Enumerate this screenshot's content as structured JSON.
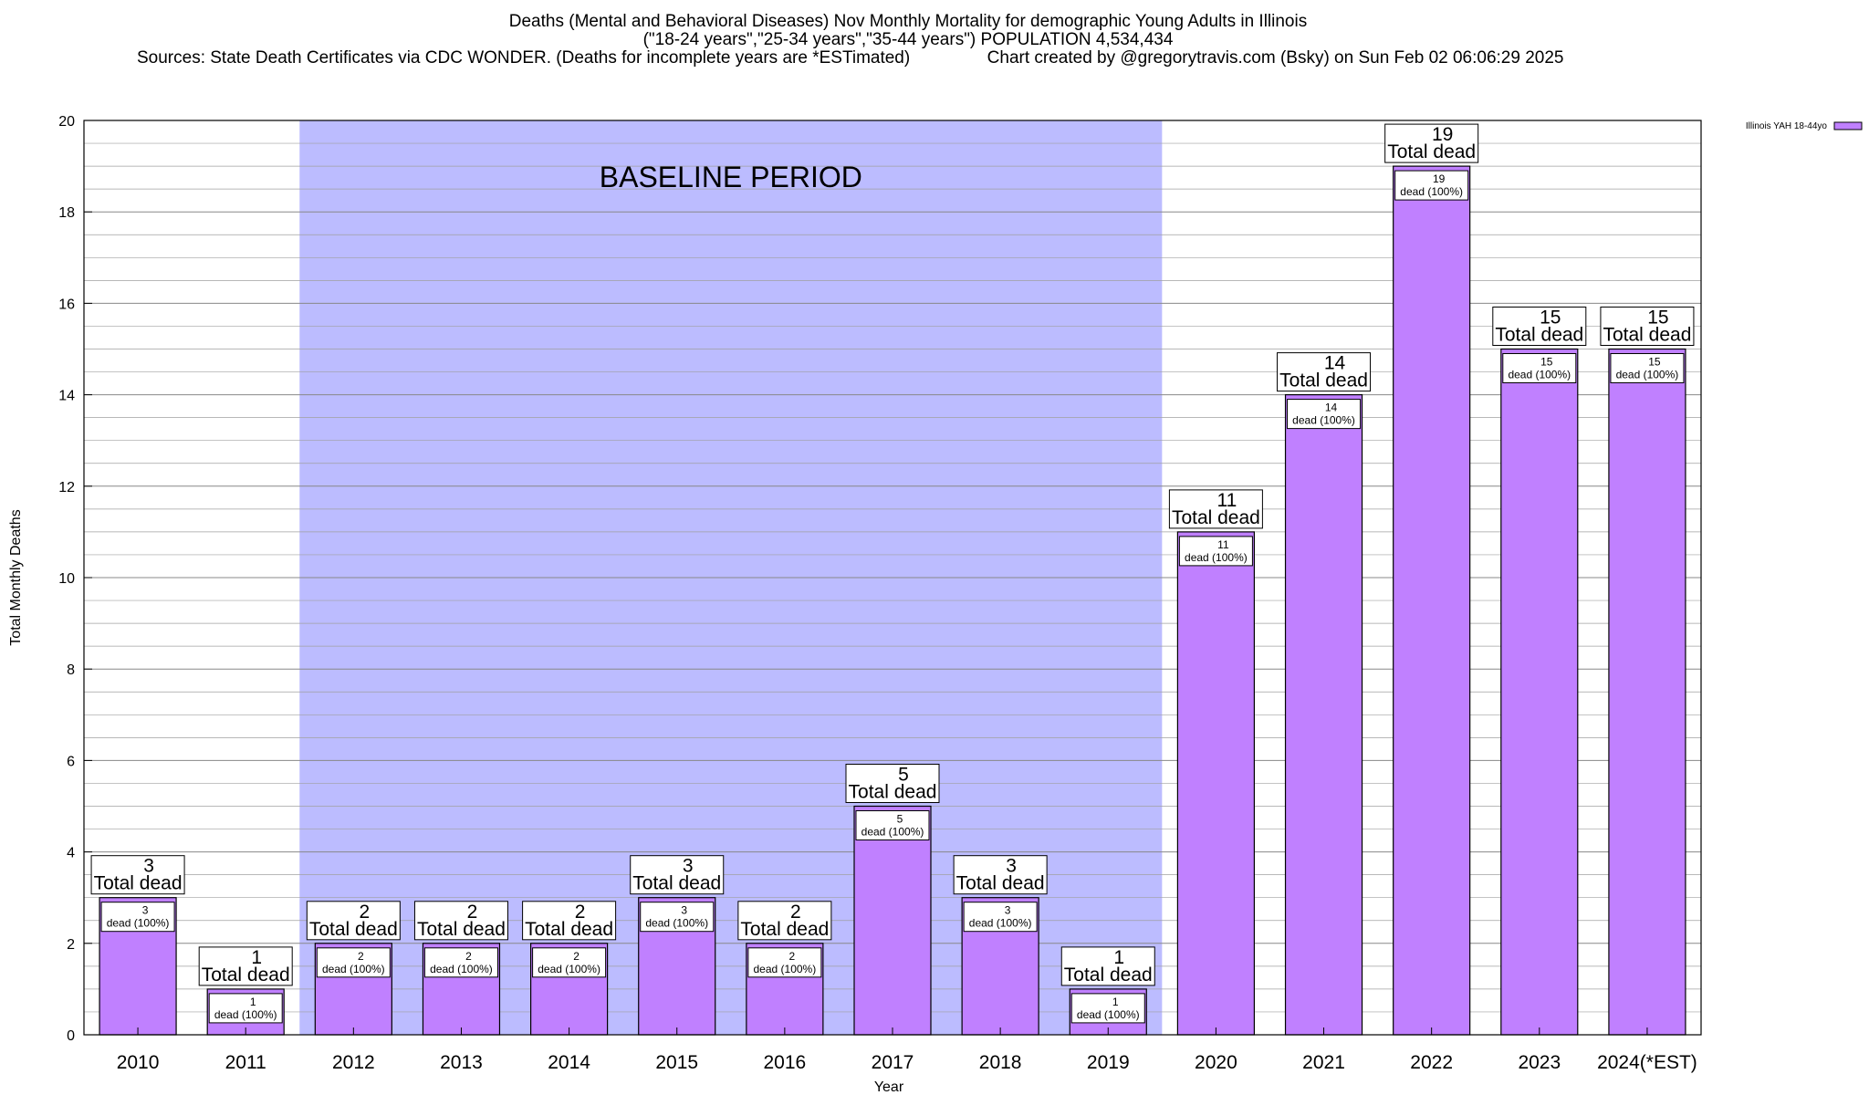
{
  "title": {
    "line1": "Deaths (Mental and Behavioral Diseases) Nov Monthly Mortality for demographic Young Adults in Illinois",
    "line2": "(\"18-24 years\",\"25-34 years\",\"35-44 years\") POPULATION 4,534,434",
    "line3": "Sources: State Death Certificates via CDC WONDER. (Deaths for incomplete years are *ESTimated)                Chart created by @gregorytravis.com (Bsky) on Sun Feb 02 06:06:29 2025"
  },
  "colors": {
    "bar_fill": "#c080ff",
    "baseline_shade": "#bcbcff",
    "grid": "#a0a0a0"
  },
  "chart_data": {
    "type": "bar",
    "title": "Deaths (Mental and Behavioral Diseases) Nov Monthly Mortality for demographic Young Adults in Illinois",
    "xlabel": "Year",
    "ylabel": "Total Monthly Deaths",
    "ylim": [
      0,
      20
    ],
    "yticks": [
      0,
      2,
      4,
      6,
      8,
      10,
      12,
      14,
      16,
      18,
      20
    ],
    "grid": true,
    "legend_position": "top-right",
    "categories": [
      "2010",
      "2011",
      "2012",
      "2013",
      "2014",
      "2015",
      "2016",
      "2017",
      "2018",
      "2019",
      "2020",
      "2021",
      "2022",
      "2023",
      "2024(*EST)"
    ],
    "series": [
      {
        "name": "Illinois YAH 18-44yo",
        "values": [
          3,
          1,
          2,
          2,
          2,
          3,
          2,
          5,
          3,
          1,
          11,
          14,
          19,
          15,
          15
        ]
      }
    ],
    "bar_inner_label_suffix": "dead (100%)",
    "bar_outer_label_suffix": "Total dead",
    "annotations": [
      {
        "text": "BASELINE PERIOD",
        "from_category": "2012",
        "to_category": "2019"
      }
    ]
  }
}
